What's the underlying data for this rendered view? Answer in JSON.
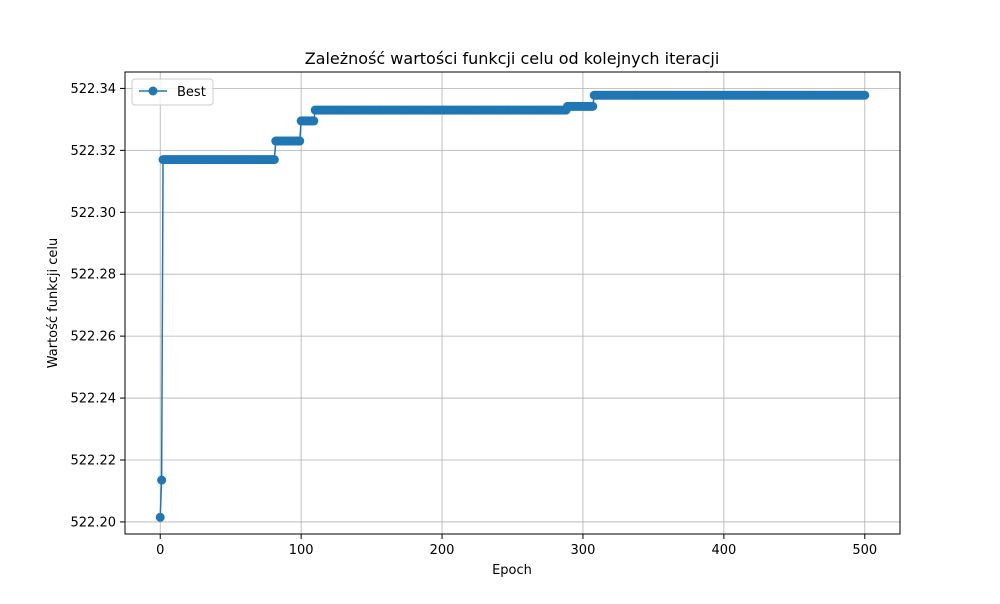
{
  "chart_data": {
    "type": "line",
    "title": "Zależność wartości funkcji celu od kolejnych iteracji",
    "xlabel": "Epoch",
    "ylabel": "Wartość funkcji celu",
    "xlim": [
      -25,
      525
    ],
    "ylim": [
      522.1961,
      522.3453
    ],
    "x_ticks": [
      0,
      100,
      200,
      300,
      400,
      500
    ],
    "x_tick_labels": [
      "0",
      "100",
      "200",
      "300",
      "400",
      "500"
    ],
    "y_ticks": [
      522.2,
      522.22,
      522.24,
      522.26,
      522.28,
      522.3,
      522.32,
      522.34
    ],
    "y_tick_labels": [
      "522.20",
      "522.22",
      "522.24",
      "522.26",
      "522.28",
      "522.30",
      "522.32",
      "522.34"
    ],
    "grid": true,
    "legend_position": "top-left",
    "colors": {
      "series": "#1f77b4",
      "grid": "#b0b0b0",
      "axes": "#000000"
    },
    "series": [
      {
        "name": "Best",
        "marker": "circle",
        "segments": [
          {
            "from": 0,
            "to": 0,
            "value": 522.2015
          },
          {
            "from": 1,
            "to": 1,
            "value": 522.2135
          },
          {
            "from": 2,
            "to": 81,
            "value": 522.317
          },
          {
            "from": 82,
            "to": 99,
            "value": 522.323
          },
          {
            "from": 100,
            "to": 109,
            "value": 522.3295
          },
          {
            "from": 110,
            "to": 288,
            "value": 522.333
          },
          {
            "from": 289,
            "to": 307,
            "value": 522.3342
          },
          {
            "from": 308,
            "to": 500,
            "value": 522.3378
          }
        ]
      }
    ]
  }
}
